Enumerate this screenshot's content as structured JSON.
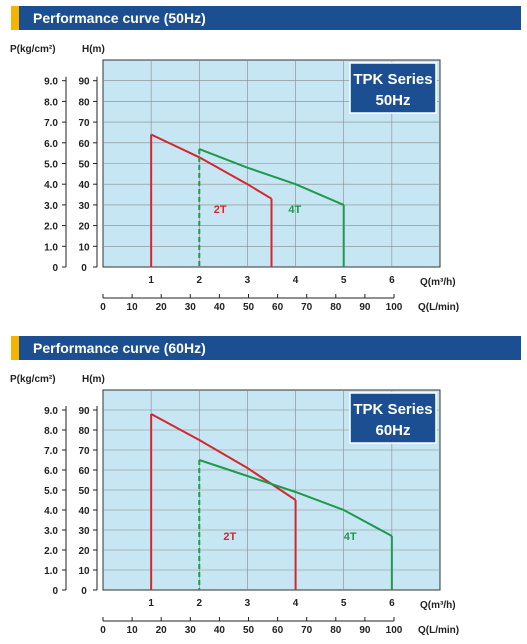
{
  "chart_data": [
    {
      "type": "line",
      "title": "Performance curve (50Hz)",
      "badge": [
        "TPK Series",
        "50Hz"
      ],
      "y_left_label": "P(kg/cm²)",
      "y_right_label": "H(m)",
      "x_label": "Q(m³/h)",
      "x2_label": "Q(L/min)",
      "p_ticks": [
        "0",
        "1.0",
        "2.0",
        "3.0",
        "4.0",
        "5.0",
        "6.0",
        "7.0",
        "8.0",
        "9.0"
      ],
      "h_ticks": [
        "0",
        "10",
        "20",
        "30",
        "40",
        "50",
        "60",
        "70",
        "80",
        "90"
      ],
      "x_ticks": [
        "0",
        "1",
        "2",
        "3",
        "4",
        "5",
        "6"
      ],
      "x2_ticks": [
        "0",
        "10",
        "20",
        "30",
        "40",
        "50",
        "60",
        "70",
        "80",
        "90",
        "100"
      ],
      "xlim": [
        0,
        7
      ],
      "ylim": [
        0,
        100
      ],
      "grid": true,
      "series": [
        {
          "name": "2T",
          "color": "#d4272e",
          "dashed": false,
          "x": [
            1.0,
            2.0,
            3.0,
            3.5
          ],
          "y": [
            64,
            53,
            40,
            33
          ],
          "drop_lines": [
            1.0,
            3.5
          ],
          "label_at": [
            2.3,
            26
          ]
        },
        {
          "name": "4T",
          "color": "#1f9a48",
          "dashed": true,
          "x": [
            2.0,
            3.0,
            4.0,
            5.0
          ],
          "y": [
            57,
            48,
            40,
            30
          ],
          "drop_lines": [
            2.0,
            5.0
          ],
          "label_at": [
            3.85,
            26
          ]
        }
      ]
    },
    {
      "type": "line",
      "title": "Performance curve (60Hz)",
      "badge": [
        "TPK Series",
        "60Hz"
      ],
      "y_left_label": "P(kg/cm²)",
      "y_right_label": "H(m)",
      "x_label": "Q(m³/h)",
      "x2_label": "Q(L/min)",
      "p_ticks": [
        "0",
        "1.0",
        "2.0",
        "3.0",
        "4.0",
        "5.0",
        "6.0",
        "7.0",
        "8.0",
        "9.0"
      ],
      "h_ticks": [
        "0",
        "10",
        "20",
        "30",
        "40",
        "50",
        "60",
        "70",
        "80",
        "90"
      ],
      "x_ticks": [
        "0",
        "1",
        "2",
        "3",
        "4",
        "5",
        "6"
      ],
      "x2_ticks": [
        "0",
        "10",
        "20",
        "30",
        "40",
        "50",
        "60",
        "70",
        "80",
        "90",
        "100"
      ],
      "xlim": [
        0,
        7
      ],
      "ylim": [
        0,
        100
      ],
      "grid": true,
      "series": [
        {
          "name": "2T",
          "color": "#d4272e",
          "dashed": false,
          "x": [
            1.0,
            2.0,
            3.0,
            4.0
          ],
          "y": [
            88,
            75,
            61,
            45
          ],
          "drop_lines": [
            1.0,
            4.0
          ],
          "label_at": [
            2.5,
            25
          ]
        },
        {
          "name": "4T",
          "color": "#1f9a48",
          "dashed": true,
          "x": [
            2.0,
            3.0,
            4.0,
            5.0,
            6.0
          ],
          "y": [
            65,
            57,
            49,
            40,
            27
          ],
          "drop_lines": [
            2.0,
            6.0
          ],
          "label_at": [
            5.0,
            25
          ]
        }
      ]
    }
  ]
}
